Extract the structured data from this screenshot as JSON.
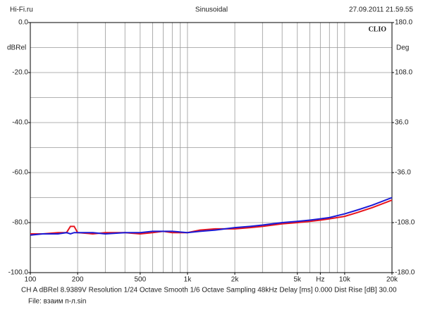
{
  "chart_data": {
    "type": "line",
    "header_left": "Hi-Fi.ru",
    "header_center": "Sinusoidal",
    "header_right": "27.09.2011 21.59.55",
    "brand": "CLIO",
    "ylabel": "dBRel",
    "y2label": "Deg",
    "footer": "CH A  dBRel 8.9389V  Resolution 1/24 Octave  Smooth 1/6 Octave  Sampling 48kHz  Delay [ms] 0.000  Dist Rise [dB] 30.00",
    "file": "File: взаим п-л.sin",
    "log_x": true,
    "grid": true,
    "xlim": [
      100,
      20000
    ],
    "xticks": [
      {
        "value": 100,
        "label": "100"
      },
      {
        "value": 200,
        "label": "200"
      },
      {
        "value": 500,
        "label": "500"
      },
      {
        "value": 1000,
        "label": "1k"
      },
      {
        "value": 2000,
        "label": "2k"
      },
      {
        "value": 5000,
        "label": "5k"
      },
      {
        "value": 7000,
        "label": "Hz"
      },
      {
        "value": 10000,
        "label": "10k"
      },
      {
        "value": 20000,
        "label": "20k"
      }
    ],
    "xgrid": [
      100,
      200,
      300,
      400,
      500,
      600,
      700,
      800,
      900,
      1000,
      2000,
      3000,
      4000,
      5000,
      6000,
      7000,
      8000,
      9000,
      10000,
      20000
    ],
    "ylim": [
      -100,
      0
    ],
    "yticks": [
      {
        "value": 0,
        "label": "0.0"
      },
      {
        "value": -20,
        "label": "-20.0"
      },
      {
        "value": -40,
        "label": "-40.0"
      },
      {
        "value": -60,
        "label": "-60.0"
      },
      {
        "value": -80,
        "label": "-80.0"
      },
      {
        "value": -100,
        "label": "-100.0"
      }
    ],
    "ygrid": [
      0,
      -10,
      -20,
      -30,
      -40,
      -50,
      -60,
      -70,
      -80,
      -90,
      -100
    ],
    "y2lim": [
      -180,
      180
    ],
    "y2ticks": [
      {
        "value": 180,
        "label": "180.0"
      },
      {
        "value": 108,
        "label": "108.0"
      },
      {
        "value": 36,
        "label": "36.0"
      },
      {
        "value": -36,
        "label": "-36.0"
      },
      {
        "value": -108,
        "label": "-108.0"
      },
      {
        "value": -180,
        "label": "-180.0"
      }
    ],
    "x": [
      100,
      120,
      150,
      170,
      180,
      190,
      200,
      250,
      300,
      400,
      500,
      600,
      700,
      800,
      1000,
      1200,
      1500,
      2000,
      2500,
      3000,
      4000,
      5000,
      6000,
      7000,
      8000,
      10000,
      12000,
      15000,
      20000
    ],
    "series": [
      {
        "color": "#e8141c",
        "values": [
          -84.5,
          -84.5,
          -84,
          -84,
          -81.5,
          -81.5,
          -84,
          -84.5,
          -84,
          -84,
          -84.5,
          -84,
          -83.5,
          -84,
          -84,
          -83,
          -82.5,
          -82.5,
          -82,
          -81.5,
          -80.5,
          -80,
          -79.5,
          -79,
          -78.5,
          -77.5,
          -76,
          -74,
          -71
        ]
      },
      {
        "color": "#1a1ad6",
        "values": [
          -85,
          -84.5,
          -84.5,
          -84,
          -84.5,
          -84,
          -84,
          -84,
          -84.5,
          -84,
          -84,
          -83.5,
          -83.5,
          -83.5,
          -84,
          -83.5,
          -83,
          -82,
          -81.5,
          -81,
          -80,
          -79.5,
          -79,
          -78.5,
          -78,
          -76.5,
          -75,
          -73,
          -70
        ]
      }
    ]
  }
}
